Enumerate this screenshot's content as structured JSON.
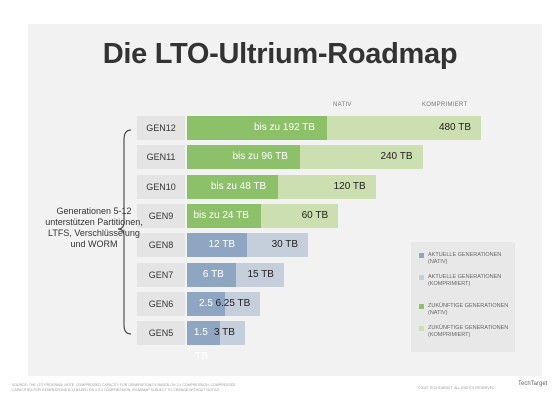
{
  "title": "Die LTO-Ultrium-Roadmap",
  "colors": {
    "current_native": "#8fa6c3",
    "current_compressed": "#c5cfdc",
    "future_native": "#8cc069",
    "future_compressed": "#cbdfb0"
  },
  "chart_data": {
    "type": "bar",
    "orientation": "horizontal",
    "stacked": true,
    "title": "Die LTO-Ultrium-Roadmap",
    "series_headers": [
      "NATIV",
      "KOMPRIMIERT"
    ],
    "rows": [
      {
        "gen": "GEN12",
        "native": 192,
        "compressed": 480,
        "native_label": "bis zu 192 TB",
        "compressed_label": "480 TB",
        "group": "future"
      },
      {
        "gen": "GEN11",
        "native": 96,
        "compressed": 240,
        "native_label": "bis zu 96 TB",
        "compressed_label": "240 TB",
        "group": "future"
      },
      {
        "gen": "GEN10",
        "native": 48,
        "compressed": 120,
        "native_label": "bis zu 48 TB",
        "compressed_label": "120 TB",
        "group": "future"
      },
      {
        "gen": "GEN9",
        "native": 24,
        "compressed": 60,
        "native_label": "bis zu  24 TB",
        "compressed_label": "60 TB",
        "group": "future"
      },
      {
        "gen": "GEN8",
        "native": 12,
        "compressed": 30,
        "native_label": "12 TB",
        "compressed_label": "30 TB",
        "group": "current"
      },
      {
        "gen": "GEN7",
        "native": 6,
        "compressed": 15,
        "native_label": "6 TB",
        "compressed_label": "15 TB",
        "group": "current"
      },
      {
        "gen": "GEN6",
        "native": 2.5,
        "compressed": 6.25,
        "native_label": "2.5 TB",
        "compressed_label": "6.25 TB",
        "group": "current"
      },
      {
        "gen": "GEN5",
        "native": 1.5,
        "compressed": 3,
        "native_label": "1.5 TB",
        "compressed_label": "3 TB",
        "group": "current"
      }
    ],
    "annotation": "Generationen 5-12 unterstützen Partitionen, LTFS, Verschlüsselung und WORM",
    "legend": [
      {
        "label": "Aktuelle Generationen (Nativ)",
        "color": "#8fa6c3"
      },
      {
        "label": "Aktuelle Generationen (Komprimiert)",
        "color": "#c5cfdc"
      },
      {
        "label": "Zukünftige Generationen (Nativ)",
        "color": "#8cc069"
      },
      {
        "label": "Zukünftige Generationen (Komprimiert)",
        "color": "#cbdfb0"
      }
    ]
  },
  "footer": {
    "source_line1": "Source: the LTO Program; note: compressed capacity for generations 5 based on 2:1 compression; compressed",
    "source_line2": "capacities for generations 6-12 based on 2.5:1 compression; roadmap subject to change without notice",
    "copyright": "©2022 TechTarget. All rights reserved.",
    "logo": "TechTarget"
  }
}
